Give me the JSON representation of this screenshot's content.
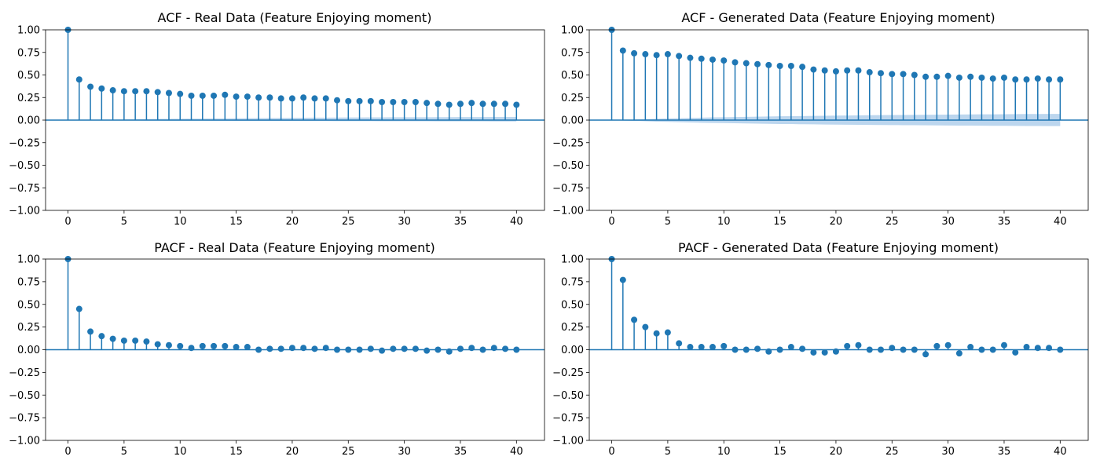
{
  "colors": {
    "stem": "#1f77b4",
    "band": "#a6c8e8",
    "axis": "#000000",
    "background": "#ffffff"
  },
  "chart_data": [
    {
      "type": "stem",
      "title": "ACF - Real Data (Feature Enjoying moment)",
      "xlabel": "",
      "ylabel": "",
      "xlim": [
        -2.0,
        42.5
      ],
      "ylim": [
        -1.0,
        1.0
      ],
      "xticks": [
        0,
        5,
        10,
        15,
        20,
        25,
        30,
        35,
        40
      ],
      "yticks": [
        -1.0,
        -0.75,
        -0.5,
        -0.25,
        0.0,
        0.25,
        0.5,
        0.75,
        1.0
      ],
      "ytick_labels": [
        "−1.00",
        "−0.75",
        "−0.50",
        "−0.25",
        "0.00",
        "0.25",
        "0.50",
        "0.75",
        "1.00"
      ],
      "lags": [
        0,
        1,
        2,
        3,
        4,
        5,
        6,
        7,
        8,
        9,
        10,
        11,
        12,
        13,
        14,
        15,
        16,
        17,
        18,
        19,
        20,
        21,
        22,
        23,
        24,
        25,
        26,
        27,
        28,
        29,
        30,
        31,
        32,
        33,
        34,
        35,
        36,
        37,
        38,
        39,
        40
      ],
      "values": [
        1.0,
        0.45,
        0.37,
        0.35,
        0.33,
        0.32,
        0.32,
        0.32,
        0.31,
        0.3,
        0.29,
        0.27,
        0.27,
        0.27,
        0.28,
        0.26,
        0.26,
        0.25,
        0.25,
        0.24,
        0.24,
        0.25,
        0.24,
        0.24,
        0.22,
        0.21,
        0.21,
        0.21,
        0.2,
        0.2,
        0.2,
        0.2,
        0.19,
        0.18,
        0.17,
        0.18,
        0.19,
        0.18,
        0.18,
        0.18,
        0.17
      ],
      "confint_upper": [
        0.0,
        0.0,
        0.0,
        0.0,
        0.005,
        0.007,
        0.009,
        0.011,
        0.013,
        0.014,
        0.015,
        0.016,
        0.017,
        0.018,
        0.019,
        0.02,
        0.021,
        0.022,
        0.023,
        0.024,
        0.025,
        0.026,
        0.027,
        0.027,
        0.028,
        0.029,
        0.029,
        0.03,
        0.03,
        0.031,
        0.031,
        0.032,
        0.032,
        0.033,
        0.033,
        0.034,
        0.034,
        0.034,
        0.035,
        0.035,
        0.035
      ],
      "confint_lower": [
        0.0,
        0.0,
        0.0,
        0.0,
        -0.002,
        -0.003,
        -0.004,
        -0.005,
        -0.005,
        -0.006,
        -0.006,
        -0.007,
        -0.007,
        -0.008,
        -0.008,
        -0.009,
        -0.009,
        -0.009,
        -0.01,
        -0.01,
        -0.01,
        -0.011,
        -0.011,
        -0.011,
        -0.012,
        -0.012,
        -0.012,
        -0.012,
        -0.013,
        -0.013,
        -0.013,
        -0.013,
        -0.013,
        -0.014,
        -0.014,
        -0.014,
        -0.014,
        -0.014,
        -0.015,
        -0.015,
        -0.015
      ]
    },
    {
      "type": "stem",
      "title": "ACF - Generated Data (Feature Enjoying moment)",
      "xlabel": "",
      "ylabel": "",
      "xlim": [
        -2.0,
        42.5
      ],
      "ylim": [
        -1.0,
        1.0
      ],
      "xticks": [
        0,
        5,
        10,
        15,
        20,
        25,
        30,
        35,
        40
      ],
      "yticks": [
        -1.0,
        -0.75,
        -0.5,
        -0.25,
        0.0,
        0.25,
        0.5,
        0.75,
        1.0
      ],
      "ytick_labels": [
        "−1.00",
        "−0.75",
        "−0.50",
        "−0.25",
        "0.00",
        "0.25",
        "0.50",
        "0.75",
        "1.00"
      ],
      "lags": [
        0,
        1,
        2,
        3,
        4,
        5,
        6,
        7,
        8,
        9,
        10,
        11,
        12,
        13,
        14,
        15,
        16,
        17,
        18,
        19,
        20,
        21,
        22,
        23,
        24,
        25,
        26,
        27,
        28,
        29,
        30,
        31,
        32,
        33,
        34,
        35,
        36,
        37,
        38,
        39,
        40
      ],
      "values": [
        1.0,
        0.77,
        0.74,
        0.73,
        0.72,
        0.73,
        0.71,
        0.69,
        0.68,
        0.67,
        0.66,
        0.64,
        0.63,
        0.62,
        0.61,
        0.6,
        0.6,
        0.59,
        0.56,
        0.55,
        0.54,
        0.55,
        0.55,
        0.53,
        0.52,
        0.51,
        0.51,
        0.5,
        0.48,
        0.48,
        0.49,
        0.47,
        0.48,
        0.47,
        0.46,
        0.47,
        0.45,
        0.45,
        0.46,
        0.45,
        0.45
      ],
      "confint_upper": [
        0.0,
        0.0,
        0.005,
        0.01,
        0.014,
        0.018,
        0.021,
        0.024,
        0.027,
        0.03,
        0.032,
        0.034,
        0.036,
        0.038,
        0.04,
        0.042,
        0.044,
        0.045,
        0.047,
        0.048,
        0.05,
        0.051,
        0.052,
        0.054,
        0.055,
        0.056,
        0.057,
        0.058,
        0.059,
        0.06,
        0.061,
        0.062,
        0.063,
        0.064,
        0.064,
        0.065,
        0.066,
        0.067,
        0.067,
        0.068,
        0.069
      ],
      "confint_lower": [
        0.0,
        -0.005,
        -0.009,
        -0.013,
        -0.017,
        -0.02,
        -0.023,
        -0.026,
        -0.029,
        -0.031,
        -0.033,
        -0.035,
        -0.037,
        -0.039,
        -0.041,
        -0.043,
        -0.044,
        -0.046,
        -0.047,
        -0.049,
        -0.05,
        -0.051,
        -0.052,
        -0.053,
        -0.054,
        -0.055,
        -0.056,
        -0.057,
        -0.058,
        -0.059,
        -0.06,
        -0.061,
        -0.061,
        -0.062,
        -0.063,
        -0.063,
        -0.064,
        -0.065,
        -0.065,
        -0.066,
        -0.066
      ]
    },
    {
      "type": "stem",
      "title": "PACF - Real Data (Feature Enjoying moment)",
      "xlabel": "",
      "ylabel": "",
      "xlim": [
        -2.0,
        42.5
      ],
      "ylim": [
        -1.0,
        1.0
      ],
      "xticks": [
        0,
        5,
        10,
        15,
        20,
        25,
        30,
        35,
        40
      ],
      "yticks": [
        -1.0,
        -0.75,
        -0.5,
        -0.25,
        0.0,
        0.25,
        0.5,
        0.75,
        1.0
      ],
      "ytick_labels": [
        "−1.00",
        "−0.75",
        "−0.50",
        "−0.25",
        "0.00",
        "0.25",
        "0.50",
        "0.75",
        "1.00"
      ],
      "lags": [
        0,
        1,
        2,
        3,
        4,
        5,
        6,
        7,
        8,
        9,
        10,
        11,
        12,
        13,
        14,
        15,
        16,
        17,
        18,
        19,
        20,
        21,
        22,
        23,
        24,
        25,
        26,
        27,
        28,
        29,
        30,
        31,
        32,
        33,
        34,
        35,
        36,
        37,
        38,
        39,
        40
      ],
      "values": [
        1.0,
        0.45,
        0.2,
        0.15,
        0.12,
        0.1,
        0.1,
        0.09,
        0.06,
        0.05,
        0.04,
        0.02,
        0.04,
        0.04,
        0.04,
        0.03,
        0.03,
        0.0,
        0.01,
        0.01,
        0.02,
        0.02,
        0.01,
        0.02,
        0.0,
        0.0,
        0.0,
        0.01,
        -0.01,
        0.01,
        0.01,
        0.01,
        -0.01,
        0.0,
        -0.02,
        0.01,
        0.02,
        0.0,
        0.02,
        0.01,
        0.0
      ],
      "confint_upper": [],
      "confint_lower": []
    },
    {
      "type": "stem",
      "title": "PACF - Generated Data (Feature Enjoying moment)",
      "xlabel": "",
      "ylabel": "",
      "xlim": [
        -2.0,
        42.5
      ],
      "ylim": [
        -1.0,
        1.0
      ],
      "xticks": [
        0,
        5,
        10,
        15,
        20,
        25,
        30,
        35,
        40
      ],
      "yticks": [
        -1.0,
        -0.75,
        -0.5,
        -0.25,
        0.0,
        0.25,
        0.5,
        0.75,
        1.0
      ],
      "ytick_labels": [
        "−1.00",
        "−0.75",
        "−0.50",
        "−0.25",
        "0.00",
        "0.25",
        "0.50",
        "0.75",
        "1.00"
      ],
      "lags": [
        0,
        1,
        2,
        3,
        4,
        5,
        6,
        7,
        8,
        9,
        10,
        11,
        12,
        13,
        14,
        15,
        16,
        17,
        18,
        19,
        20,
        21,
        22,
        23,
        24,
        25,
        26,
        27,
        28,
        29,
        30,
        31,
        32,
        33,
        34,
        35,
        36,
        37,
        38,
        39,
        40
      ],
      "values": [
        1.0,
        0.77,
        0.33,
        0.25,
        0.18,
        0.19,
        0.07,
        0.03,
        0.03,
        0.03,
        0.04,
        0.0,
        0.0,
        0.01,
        -0.02,
        0.0,
        0.03,
        0.01,
        -0.03,
        -0.03,
        -0.02,
        0.04,
        0.05,
        0.0,
        0.0,
        0.02,
        0.0,
        0.0,
        -0.05,
        0.04,
        0.05,
        -0.04,
        0.03,
        0.0,
        0.0,
        0.05,
        -0.03,
        0.03,
        0.02,
        0.02,
        0.0
      ],
      "confint_upper": [],
      "confint_lower": []
    }
  ]
}
